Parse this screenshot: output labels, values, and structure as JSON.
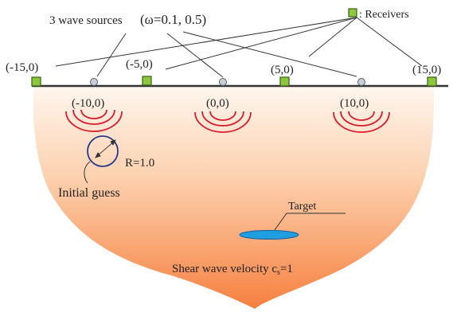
{
  "labels": {
    "sources": "3 wave sources",
    "omega": "(ω=0.1, 0.5)",
    "receivers": ": Receivers",
    "radius": "R=1.0",
    "initial_guess": "Initial guess",
    "target": "Target",
    "velocity_prefix": "Shear wave velocity c",
    "velocity_subscript": "s",
    "velocity_value": "=1"
  },
  "receivers": [
    {
      "label": "(-15,0)"
    },
    {
      "label": "(-5,0)"
    },
    {
      "label": "(5,0)"
    },
    {
      "label": "(15,0)"
    }
  ],
  "sources": [
    {
      "label": "(-10,0)"
    },
    {
      "label": "(0,0)"
    },
    {
      "label": "(10,0)"
    }
  ],
  "colors": {
    "receiver_fill": "#8dc63f",
    "receiver_stroke": "#3a5f12",
    "source_fill": "#c8cdd6",
    "source_stroke": "#5a6070",
    "wave": "#d81b2c",
    "guess_circle": "#2a3a8a",
    "target_fill": "#1f9ee0",
    "target_stroke": "#155d9c",
    "domain_top": "#fff6ee",
    "domain_bottom": "#f6803f",
    "surface_line": "#333333"
  }
}
